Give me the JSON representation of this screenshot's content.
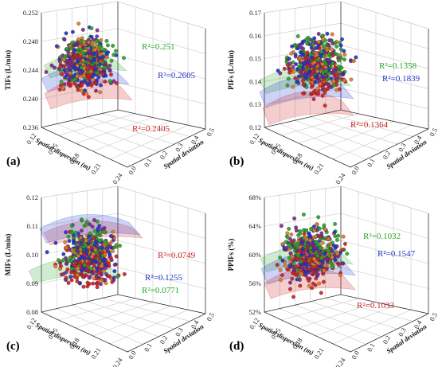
{
  "colors": {
    "green": "#28a428",
    "blue": "#2233cc",
    "red": "#cc2222",
    "purple": "#7a2a8a",
    "orange": "#e07b2a"
  },
  "chart_data": [
    {
      "panel": "(a)",
      "type": "scatter",
      "ylabel": "TIFs (L/min)",
      "xlabel": "Spatial dispersion (m)",
      "zlabel": "Spatial deviation",
      "yticks": [
        "0.236",
        "0.240",
        "0.244",
        "0.248",
        "0.252"
      ],
      "xticks": [
        "0.12",
        "0.15",
        "0.18",
        "0.21",
        "0.24"
      ],
      "zticks": [
        "0.0",
        "0.1",
        "0.2",
        "0.3",
        "0.4",
        "0.5"
      ],
      "ylim": [
        0.236,
        0.252
      ],
      "fits": [
        {
          "label": "R²=0.251",
          "r2": 0.251,
          "color": "green"
        },
        {
          "label": "R²=0.2605",
          "r2": 0.2605,
          "color": "blue"
        },
        {
          "label": "R²=0.2405",
          "r2": 0.2405,
          "color": "red"
        }
      ]
    },
    {
      "panel": "(b)",
      "type": "scatter",
      "ylabel": "PIFs (L/min)",
      "xlabel": "Spatial dispersion (m)",
      "zlabel": "Spatial deviation",
      "yticks": [
        "0.12",
        "0.13",
        "0.14",
        "0.15",
        "0.16",
        "0.17"
      ],
      "xticks": [
        "0.12",
        "0.15",
        "0.18",
        "0.21",
        "0.24"
      ],
      "zticks": [
        "0.0",
        "0.1",
        "0.2",
        "0.3",
        "0.4",
        "0.5"
      ],
      "ylim": [
        0.12,
        0.17
      ],
      "fits": [
        {
          "label": "R²=0.1358",
          "r2": 0.1358,
          "color": "green"
        },
        {
          "label": "R²=0.1839",
          "r2": 0.1839,
          "color": "blue"
        },
        {
          "label": "R²=0.1364",
          "r2": 0.1364,
          "color": "red"
        }
      ]
    },
    {
      "panel": "(c)",
      "type": "scatter",
      "ylabel": "MIFs (L/min)",
      "xlabel": "Spatial dispersion (m)",
      "zlabel": "Spatial deviation",
      "yticks": [
        "0.08",
        "0.09",
        "0.10",
        "0.11",
        "0.12"
      ],
      "xticks": [
        "0.12",
        "0.15",
        "0.18",
        "0.21",
        "0.24"
      ],
      "zticks": [
        "0.0",
        "0.1",
        "0.2",
        "0.3",
        "0.4",
        "0.5"
      ],
      "ylim": [
        0.08,
        0.12
      ],
      "fits": [
        {
          "label": "R²=0.0749",
          "r2": 0.0749,
          "color": "red"
        },
        {
          "label": "R²=0.1255",
          "r2": 0.1255,
          "color": "blue"
        },
        {
          "label": "R²=0.0771",
          "r2": 0.0771,
          "color": "green"
        }
      ]
    },
    {
      "panel": "(d)",
      "type": "scatter",
      "ylabel": "PPIFs (%)",
      "xlabel": "Spatial dispersion (m)",
      "zlabel": "Spatial deviation",
      "yticks": [
        "52%",
        "56%",
        "60%",
        "64%",
        "68%"
      ],
      "xticks": [
        "0.12",
        "0.15",
        "0.18",
        "0.21",
        "0.24"
      ],
      "zticks": [
        "0.0",
        "0.1",
        "0.2",
        "0.3",
        "0.4",
        "0.5"
      ],
      "ylim": [
        0.52,
        0.68
      ],
      "fits": [
        {
          "label": "R²=0.1032",
          "r2": 0.1032,
          "color": "green"
        },
        {
          "label": "R²=0.1547",
          "r2": 0.1547,
          "color": "blue"
        },
        {
          "label": "R²=0.1033",
          "r2": 0.1033,
          "color": "red"
        }
      ]
    }
  ]
}
